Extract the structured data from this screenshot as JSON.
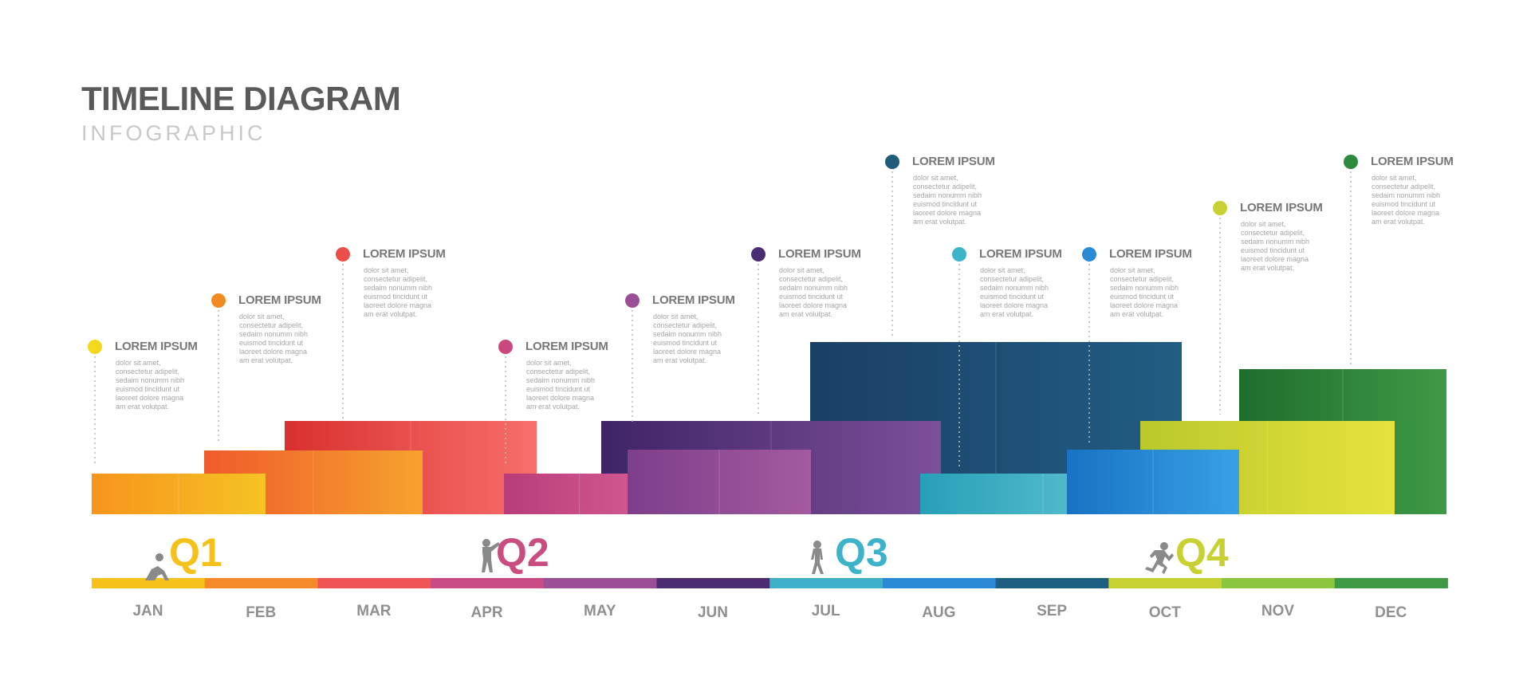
{
  "header": {
    "title": "TIMELINE DIAGRAM",
    "subtitle": "INFOGRAPHIC"
  },
  "milestones": [
    {
      "label": "LOREM IPSUM",
      "desc": "dolor sit amet, consectetur adipelit, sedaim nonumm nibh euismod tincidunt ut laoreet dolore magna am erat volutpat.",
      "color": "#f4d81c",
      "month": "JAN"
    },
    {
      "label": "LOREM IPSUM",
      "desc": "dolor sit amet, consectetur adipelit, sedaim nonumm nibh euismod tincidunt ut laoreet dolore magna am erat volutpat.",
      "color": "#f28a22",
      "month": "FEB"
    },
    {
      "label": "LOREM IPSUM",
      "desc": "dolor sit amet, consectetur adipelit, sedaim nonumm nibh euismod tincidunt ut laoreet dolore magna am erat volutpat.",
      "color": "#eb4d4b",
      "month": "MAR"
    },
    {
      "label": "LOREM IPSUM",
      "desc": "dolor sit amet, consectetur adipelit, sedaim nonumm nibh euismod tincidunt ut laoreet dolore magna am erat volutpat.",
      "color": "#c9487f",
      "month": "APR"
    },
    {
      "label": "LOREM IPSUM",
      "desc": "dolor sit amet, consectetur adipelit, sedaim nonumm nibh euismod tincidunt ut laoreet dolore magna am erat volutpat.",
      "color": "#9b4f96",
      "month": "MAY"
    },
    {
      "label": "LOREM IPSUM",
      "desc": "dolor sit amet, consectetur adipelit, sedaim nonumm nibh euismod tincidunt ut laoreet dolore magna am erat volutpat.",
      "color": "#4a2d72",
      "month": "JUN"
    },
    {
      "label": "LOREM IPSUM",
      "desc": "dolor sit amet, consectetur adipelit, sedaim nonumm nibh euismod tincidunt ut laoreet dolore magna am erat volutpat.",
      "color": "#1f5c7a",
      "month": "JUL"
    },
    {
      "label": "LOREM IPSUM",
      "desc": "dolor sit amet, consectetur adipelit, sedaim nonumm nibh euismod tincidunt ut laoreet dolore magna am erat volutpat.",
      "color": "#3db4c9",
      "month": "AUG"
    },
    {
      "label": "LOREM IPSUM",
      "desc": "dolor sit amet, consectetur adipelit, sedaim nonumm nibh euismod tincidunt ut laoreet dolore magna am erat volutpat.",
      "color": "#2a8ad6",
      "month": "SEP"
    },
    {
      "label": "LOREM IPSUM",
      "desc": "dolor sit amet, consectetur adipelit, sedaim nonumm nibh euismod tincidunt ut laoreet dolore magna am erat volutpat.",
      "color": "#c7d132",
      "month": "OCT"
    },
    {
      "label": "LOREM IPSUM",
      "desc": "dolor sit amet, consectetur adipelit, sedaim nonumm nibh euismod tincidunt ut laoreet dolore magna am erat volutpat.",
      "color": "#2e8a3c",
      "month": "NOV"
    }
  ],
  "quarters": [
    {
      "label": "Q1",
      "color": "#f4c21b",
      "icon": "crouching-person-icon"
    },
    {
      "label": "Q2",
      "color": "#c94d7f",
      "icon": "pointing-person-icon"
    },
    {
      "label": "Q3",
      "color": "#3eb2c8",
      "icon": "walking-person-icon"
    },
    {
      "label": "Q4",
      "color": "#c7d132",
      "icon": "running-person-icon"
    }
  ],
  "months": [
    {
      "name": "JAN",
      "color": "#f6c11a"
    },
    {
      "name": "FEB",
      "color": "#f48a2a"
    },
    {
      "name": "MAR",
      "color": "#ef5556"
    },
    {
      "name": "APR",
      "color": "#c94d84"
    },
    {
      "name": "MAY",
      "color": "#9a5095"
    },
    {
      "name": "JUN",
      "color": "#4b2c72"
    },
    {
      "name": "JUL",
      "color": "#3eb0c8"
    },
    {
      "name": "AUG",
      "color": "#2a8ad6"
    },
    {
      "name": "SEP",
      "color": "#1d5f80"
    },
    {
      "name": "OCT",
      "color": "#c7d132"
    },
    {
      "name": "NOV",
      "color": "#8cc63f"
    },
    {
      "name": "DEC",
      "color": "#3f9a45"
    }
  ],
  "bars": [
    {
      "month": "JAN",
      "colors": [
        "#f7941d",
        "#f6c324"
      ]
    },
    {
      "month": "FEB",
      "colors": [
        "#ef5b2b",
        "#f6a22d"
      ]
    },
    {
      "month": "MAR",
      "colors": [
        "#d9302e",
        "#f76f6b"
      ]
    },
    {
      "month": "APR",
      "colors": [
        "#b83c78",
        "#d55c95"
      ]
    },
    {
      "month": "MAY",
      "colors": [
        "#7d3e8a",
        "#a45aa0"
      ]
    },
    {
      "month": "JUN",
      "colors": [
        "#3e2466",
        "#7c4f9a"
      ]
    },
    {
      "month": "JUL",
      "colors": [
        "#1a3f66",
        "#225d82"
      ]
    },
    {
      "month": "AUG",
      "colors": [
        "#27a0b8",
        "#6cc9d6"
      ]
    },
    {
      "month": "SEP",
      "colors": [
        "#1972c4",
        "#38a1e4"
      ]
    },
    {
      "month": "OCT",
      "colors": [
        "#b9c92b",
        "#e6e23d"
      ]
    },
    {
      "month": "NOV",
      "colors": [
        "#1f6d2e",
        "#3e9a45"
      ]
    }
  ]
}
